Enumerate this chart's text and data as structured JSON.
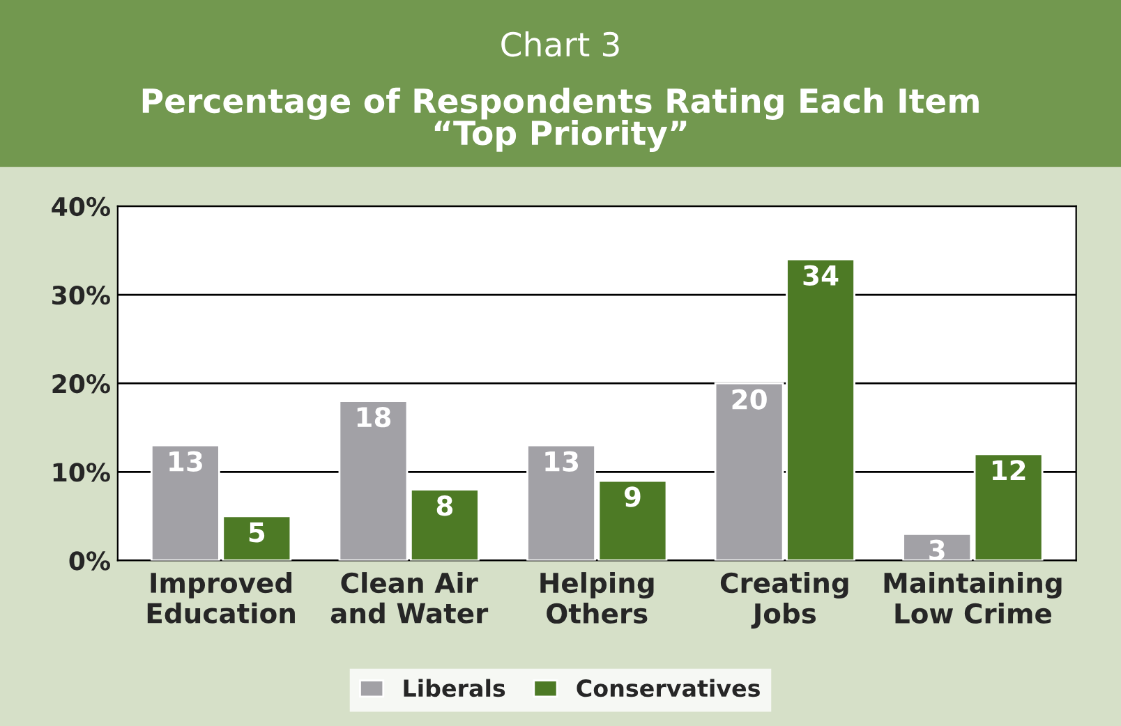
{
  "chart_data": {
    "type": "bar",
    "title": "Chart 3",
    "subtitle": "Percentage of Respondents Rating Each Item\n“Top Priority”",
    "categories": [
      "Improved\nEducation",
      "Clean Air\nand Water",
      "Helping\nOthers",
      "Creating\nJobs",
      "Maintaining\nLow Crime"
    ],
    "series": [
      {
        "name": "Liberals",
        "color": "#a2a1a6",
        "values": [
          13,
          18,
          13,
          20,
          3
        ]
      },
      {
        "name": "Conservatives",
        "color": "#4d7a25",
        "values": [
          5,
          8,
          9,
          34,
          12
        ]
      }
    ],
    "ylim": [
      0,
      40
    ],
    "yticks": [
      {
        "value": 0,
        "label": "0%"
      },
      {
        "value": 10,
        "label": "10%"
      },
      {
        "value": 20,
        "label": "20%"
      },
      {
        "value": 30,
        "label": "30%"
      },
      {
        "value": 40,
        "label": "40%"
      }
    ],
    "grid": "y",
    "data_labels": true,
    "legend": "bottom"
  }
}
